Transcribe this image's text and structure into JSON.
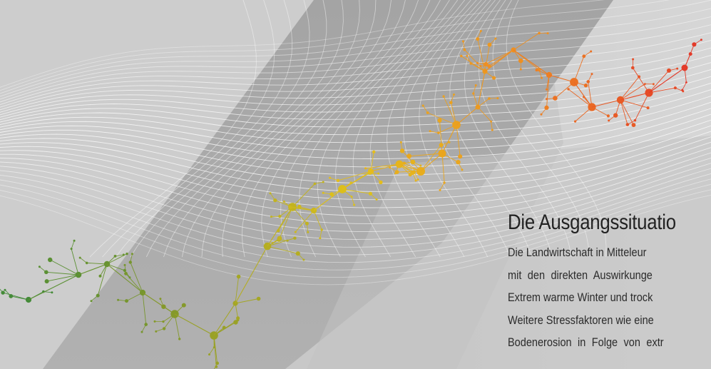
{
  "section": {
    "heading": "Die Ausgangssituatio",
    "lines": [
      "Die Landwirtschaft in Mitteleur",
      "mit den direkten Auswirkunge",
      "Extrem warme Winter und trock",
      "Weitere Stressfaktoren wie eine",
      "Bodenerosion in Folge von extr"
    ]
  },
  "colors": {
    "background": "#c9c9c9",
    "band": "#a9a9a9",
    "mesh": "#ffffff",
    "network_green": "#3f8a3a",
    "network_olive": "#8a9a2a",
    "network_yellow": "#e3c21a",
    "network_orange": "#ef8a22",
    "network_red": "#e2332a"
  }
}
